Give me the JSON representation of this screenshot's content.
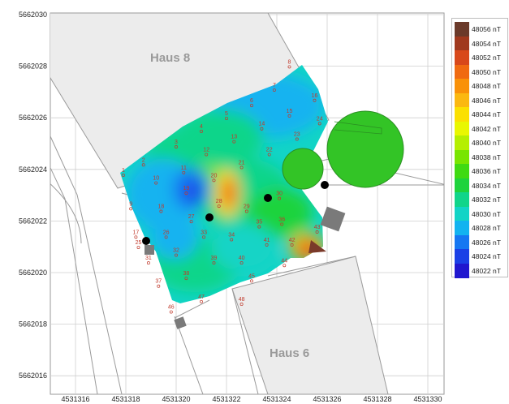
{
  "map": {
    "x_ticks": [
      "4531316",
      "4531318",
      "4531320",
      "4531322",
      "4531324",
      "4531326",
      "4531328",
      "4531330"
    ],
    "y_ticks": [
      "5662016",
      "5662018",
      "5662020",
      "5662022",
      "5662024",
      "5662026",
      "5662028",
      "5662030"
    ],
    "buildings": [
      {
        "name": "Haus 8"
      },
      {
        "name": "Haus 6"
      }
    ]
  },
  "legend": {
    "unit": "nT",
    "entries": [
      {
        "label": "48056 nT",
        "color": "#6b3a2a"
      },
      {
        "label": "48054 nT",
        "color": "#a0391e"
      },
      {
        "label": "48052 nT",
        "color": "#d8481a"
      },
      {
        "label": "48050 nT",
        "color": "#f06a10"
      },
      {
        "label": "48048 nT",
        "color": "#f99108"
      },
      {
        "label": "48046 nT",
        "color": "#fbb810"
      },
      {
        "label": "48044 nT",
        "color": "#fbe000"
      },
      {
        "label": "48042 nT",
        "color": "#e9f700"
      },
      {
        "label": "48040 nT",
        "color": "#b5ef00"
      },
      {
        "label": "48038 nT",
        "color": "#78e500"
      },
      {
        "label": "48036 nT",
        "color": "#3fda12"
      },
      {
        "label": "48034 nT",
        "color": "#1ed33c"
      },
      {
        "label": "48032 nT",
        "color": "#10d58a"
      },
      {
        "label": "48030 nT",
        "color": "#12d4c6"
      },
      {
        "label": "48028 nT",
        "color": "#12b3f0"
      },
      {
        "label": "48026 nT",
        "color": "#1577f2"
      },
      {
        "label": "48024 nT",
        "color": "#1a40e6"
      },
      {
        "label": "48022 nT",
        "color": "#2017cf"
      }
    ]
  },
  "points": [
    {
      "label": "1",
      "x": 4531317.9,
      "y": 5662023.9
    },
    {
      "label": "2",
      "x": 4531318.7,
      "y": 5662024.3
    },
    {
      "label": "3",
      "x": 4531320.0,
      "y": 5662025.0
    },
    {
      "label": "4",
      "x": 4531321.0,
      "y": 5662025.6
    },
    {
      "label": "5",
      "x": 4531322.0,
      "y": 5662026.1
    },
    {
      "label": "6",
      "x": 4531323.0,
      "y": 5662026.6
    },
    {
      "label": "7",
      "x": 4531323.9,
      "y": 5662027.2
    },
    {
      "label": "8",
      "x": 4531324.5,
      "y": 5662028.1
    },
    {
      "label": "9",
      "x": 4531318.2,
      "y": 5662022.6
    },
    {
      "label": "10",
      "x": 4531319.2,
      "y": 5662023.6
    },
    {
      "label": "11",
      "x": 4531320.3,
      "y": 5662024.0
    },
    {
      "label": "12",
      "x": 4531321.2,
      "y": 5662024.7
    },
    {
      "label": "13",
      "x": 4531322.3,
      "y": 5662025.2
    },
    {
      "label": "14",
      "x": 4531323.4,
      "y": 5662025.7
    },
    {
      "label": "15",
      "x": 4531324.5,
      "y": 5662026.2
    },
    {
      "label": "16",
      "x": 4531325.5,
      "y": 5662026.8
    },
    {
      "label": "17",
      "x": 4531318.4,
      "y": 5662021.5
    },
    {
      "label": "18",
      "x": 4531319.4,
      "y": 5662022.5
    },
    {
      "label": "19",
      "x": 4531320.4,
      "y": 5662023.2
    },
    {
      "label": "20",
      "x": 4531321.5,
      "y": 5662023.7
    },
    {
      "label": "21",
      "x": 4531322.6,
      "y": 5662024.2
    },
    {
      "label": "22",
      "x": 4531323.7,
      "y": 5662024.7
    },
    {
      "label": "23",
      "x": 4531324.8,
      "y": 5662025.3
    },
    {
      "label": "24",
      "x": 4531325.7,
      "y": 5662025.9
    },
    {
      "label": "25",
      "x": 4531318.5,
      "y": 5662021.1
    },
    {
      "label": "26",
      "x": 4531319.6,
      "y": 5662021.5
    },
    {
      "label": "27",
      "x": 4531320.6,
      "y": 5662022.1
    },
    {
      "label": "28",
      "x": 4531321.7,
      "y": 5662022.7
    },
    {
      "label": "29",
      "x": 4531322.8,
      "y": 5662022.5
    },
    {
      "label": "30",
      "x": 4531324.1,
      "y": 5662023.0
    },
    {
      "label": "31",
      "x": 4531318.9,
      "y": 5662020.5
    },
    {
      "label": "32",
      "x": 4531320.0,
      "y": 5662020.8
    },
    {
      "label": "33",
      "x": 4531321.1,
      "y": 5662021.5
    },
    {
      "label": "34",
      "x": 4531322.2,
      "y": 5662021.4
    },
    {
      "label": "35",
      "x": 4531323.3,
      "y": 5662021.9
    },
    {
      "label": "36",
      "x": 4531324.2,
      "y": 5662022.0
    },
    {
      "label": "37",
      "x": 4531319.3,
      "y": 5662019.6
    },
    {
      "label": "38",
      "x": 4531320.4,
      "y": 5662019.9
    },
    {
      "label": "39",
      "x": 4531321.5,
      "y": 5662020.5
    },
    {
      "label": "40",
      "x": 4531322.6,
      "y": 5662020.5
    },
    {
      "label": "41",
      "x": 4531323.6,
      "y": 5662021.2
    },
    {
      "label": "42",
      "x": 4531324.6,
      "y": 5662021.2
    },
    {
      "label": "43",
      "x": 4531325.6,
      "y": 5662021.7
    },
    {
      "label": "44",
      "x": 4531324.3,
      "y": 5662020.4
    },
    {
      "label": "45",
      "x": 4531323.0,
      "y": 5662019.8
    },
    {
      "label": "46",
      "x": 4531319.8,
      "y": 5662018.6
    },
    {
      "label": "47",
      "x": 4531321.0,
      "y": 5662019.0
    },
    {
      "label": "48",
      "x": 4531322.6,
      "y": 5662018.9
    }
  ]
}
